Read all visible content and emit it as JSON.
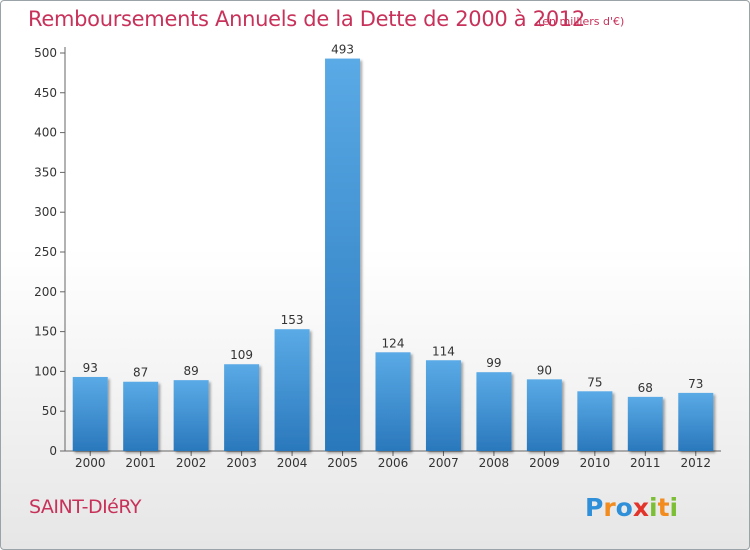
{
  "header": {
    "title": "Remboursements Annuels de la Dette de 2000 à 2012",
    "unit": "(en milliers d'€)"
  },
  "footer": {
    "commune": "SAINT-DIéRY",
    "logo_text": "Proxiti"
  },
  "colors": {
    "accent": "#c8325a",
    "bar_top": "#5aaae6",
    "bar_bottom": "#2a78bc"
  },
  "chart_data": {
    "type": "bar",
    "title": "Remboursements Annuels de la Dette de 2000 à 2012",
    "xlabel": "",
    "ylabel": "",
    "categories": [
      "2000",
      "2001",
      "2002",
      "2003",
      "2004",
      "2005",
      "2006",
      "2007",
      "2008",
      "2009",
      "2010",
      "2011",
      "2012"
    ],
    "values": [
      93,
      87,
      89,
      109,
      153,
      493,
      124,
      114,
      99,
      90,
      75,
      68,
      73
    ],
    "ylim": [
      0,
      500
    ],
    "yticks": [
      0,
      50,
      100,
      150,
      200,
      250,
      300,
      350,
      400,
      450,
      500
    ],
    "grid": false,
    "data_labels": true
  }
}
